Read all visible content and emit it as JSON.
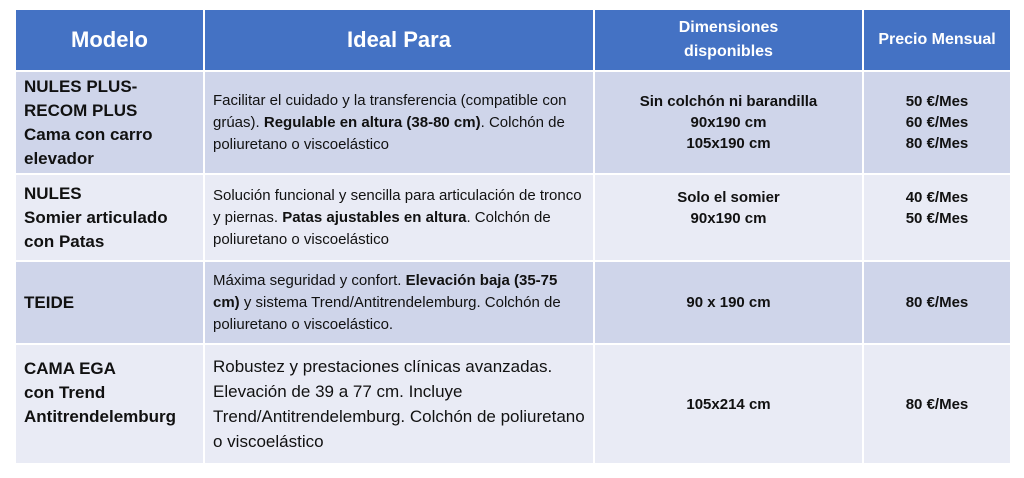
{
  "colors": {
    "header": "#4472c4",
    "row_dark": "#cfd5ea",
    "row_light": "#e9ebf5"
  },
  "headers": [
    "Modelo",
    "Ideal Para",
    "Dimensiones disponibles",
    "Precio Mensual"
  ],
  "rows": [
    {
      "model": [
        "NULES PLUS-RECOM PLUS",
        "Cama con carro elevador"
      ],
      "desc": [
        {
          "text": "Facilitar el cuidado y la transferencia (compatible con grúas). ",
          "bold": false
        },
        {
          "text": "Regulable en altura (38-80 cm)",
          "bold": true
        },
        {
          "text": ". Colchón de poliuretano o viscoelástico",
          "bold": false
        }
      ],
      "dims": [
        "Sin colchón ni barandilla",
        "90x190 cm",
        "105x190 cm"
      ],
      "prices": [
        "50 €/Mes",
        "60 €/Mes",
        "80 €/Mes"
      ]
    },
    {
      "model": [
        "NULES",
        "Somier articulado con Patas"
      ],
      "desc": [
        {
          "text": "Solución funcional y sencilla para articulación de tronco y piernas. ",
          "bold": false
        },
        {
          "text": "Patas ajustables en altura",
          "bold": true
        },
        {
          "text": ". Colchón de poliuretano o viscoelástico",
          "bold": false
        }
      ],
      "dims": [
        "Solo el somier",
        "90x190 cm"
      ],
      "prices": [
        "40 €/Mes",
        "50 €/Mes"
      ]
    },
    {
      "model": [
        "TEIDE"
      ],
      "desc": [
        {
          "text": "Máxima seguridad y confort. ",
          "bold": false
        },
        {
          "text": "Elevación baja (35-75 cm)",
          "bold": true
        },
        {
          "text": " y sistema Trend/Antitrendelemburg. Colchón de poliuretano o viscoelástico.",
          "bold": false
        }
      ],
      "dims": [
        "90 x 190 cm"
      ],
      "prices": [
        "80 €/Mes"
      ]
    },
    {
      "model": [
        "CAMA EGA",
        "con Trend Antitrendelemburg"
      ],
      "desc": [
        {
          "text": "Robustez y prestaciones clínicas avanzadas. Elevación de 39 a 77 cm. Incluye Trend/Antitrendelemburg. Colchón de poliuretano o viscoelástico",
          "bold": false
        }
      ],
      "dims": [
        "105x214 cm"
      ],
      "prices": [
        "80 €/Mes"
      ]
    }
  ]
}
